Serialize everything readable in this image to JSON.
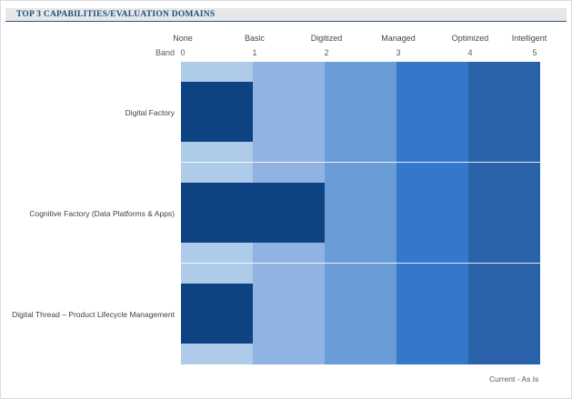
{
  "header": {
    "title": "TOP 3 CAPABILITIES/EVALUATION DOMAINS"
  },
  "axis": {
    "band_label": "Band",
    "levels": [
      {
        "name": "None",
        "value": "0"
      },
      {
        "name": "Basic",
        "value": "1"
      },
      {
        "name": "Digitized",
        "value": "2"
      },
      {
        "name": "Managed",
        "value": "3"
      },
      {
        "name": "Optimized",
        "value": "4"
      },
      {
        "name": "Intelligent",
        "value": "5"
      }
    ]
  },
  "legend": {
    "label": "Current - As Is"
  },
  "colors": {
    "bar": "#0d4383",
    "title_text": "#1f4e79",
    "title_bg": "#e7e7e7",
    "title_underline": "#31598c",
    "label_text": "#404040",
    "band_colors": [
      "#afcbea",
      "#90b3e1",
      "#6a9cd8",
      "#3478cc",
      "#2a63a9"
    ]
  },
  "chart_data": {
    "type": "bar",
    "orientation": "horizontal",
    "title": "TOP 3 CAPABILITIES/EVALUATION DOMAINS",
    "categories": [
      "Digital Factory",
      "Cognitive Factory (Data Platforms & Apps)",
      "Digital Thread – Product Lifecycle Management"
    ],
    "series": [
      {
        "name": "Current - As Is",
        "values": [
          1,
          2,
          1
        ],
        "color": "#0d4383"
      }
    ],
    "xlabel": "Band",
    "x_ticks": [
      0,
      1,
      2,
      3,
      4,
      5
    ],
    "x_tick_headers": [
      "None",
      "Basic",
      "Digitized",
      "Managed",
      "Optimized",
      "Intelligent"
    ],
    "xlim": [
      0,
      5
    ],
    "grid": false,
    "legend_position": "bottom-right",
    "background_bands": [
      {
        "range": [
          0,
          1
        ],
        "label": "None",
        "color": "#afcbea"
      },
      {
        "range": [
          1,
          2
        ],
        "label": "Basic",
        "color": "#90b3e1"
      },
      {
        "range": [
          2,
          3
        ],
        "label": "Digitized",
        "color": "#6a9cd8"
      },
      {
        "range": [
          3,
          4
        ],
        "label": "Managed",
        "color": "#3478cc"
      },
      {
        "range": [
          4,
          5
        ],
        "label": "Optimized/Intelligent step",
        "color": "#2a63a9"
      }
    ]
  }
}
